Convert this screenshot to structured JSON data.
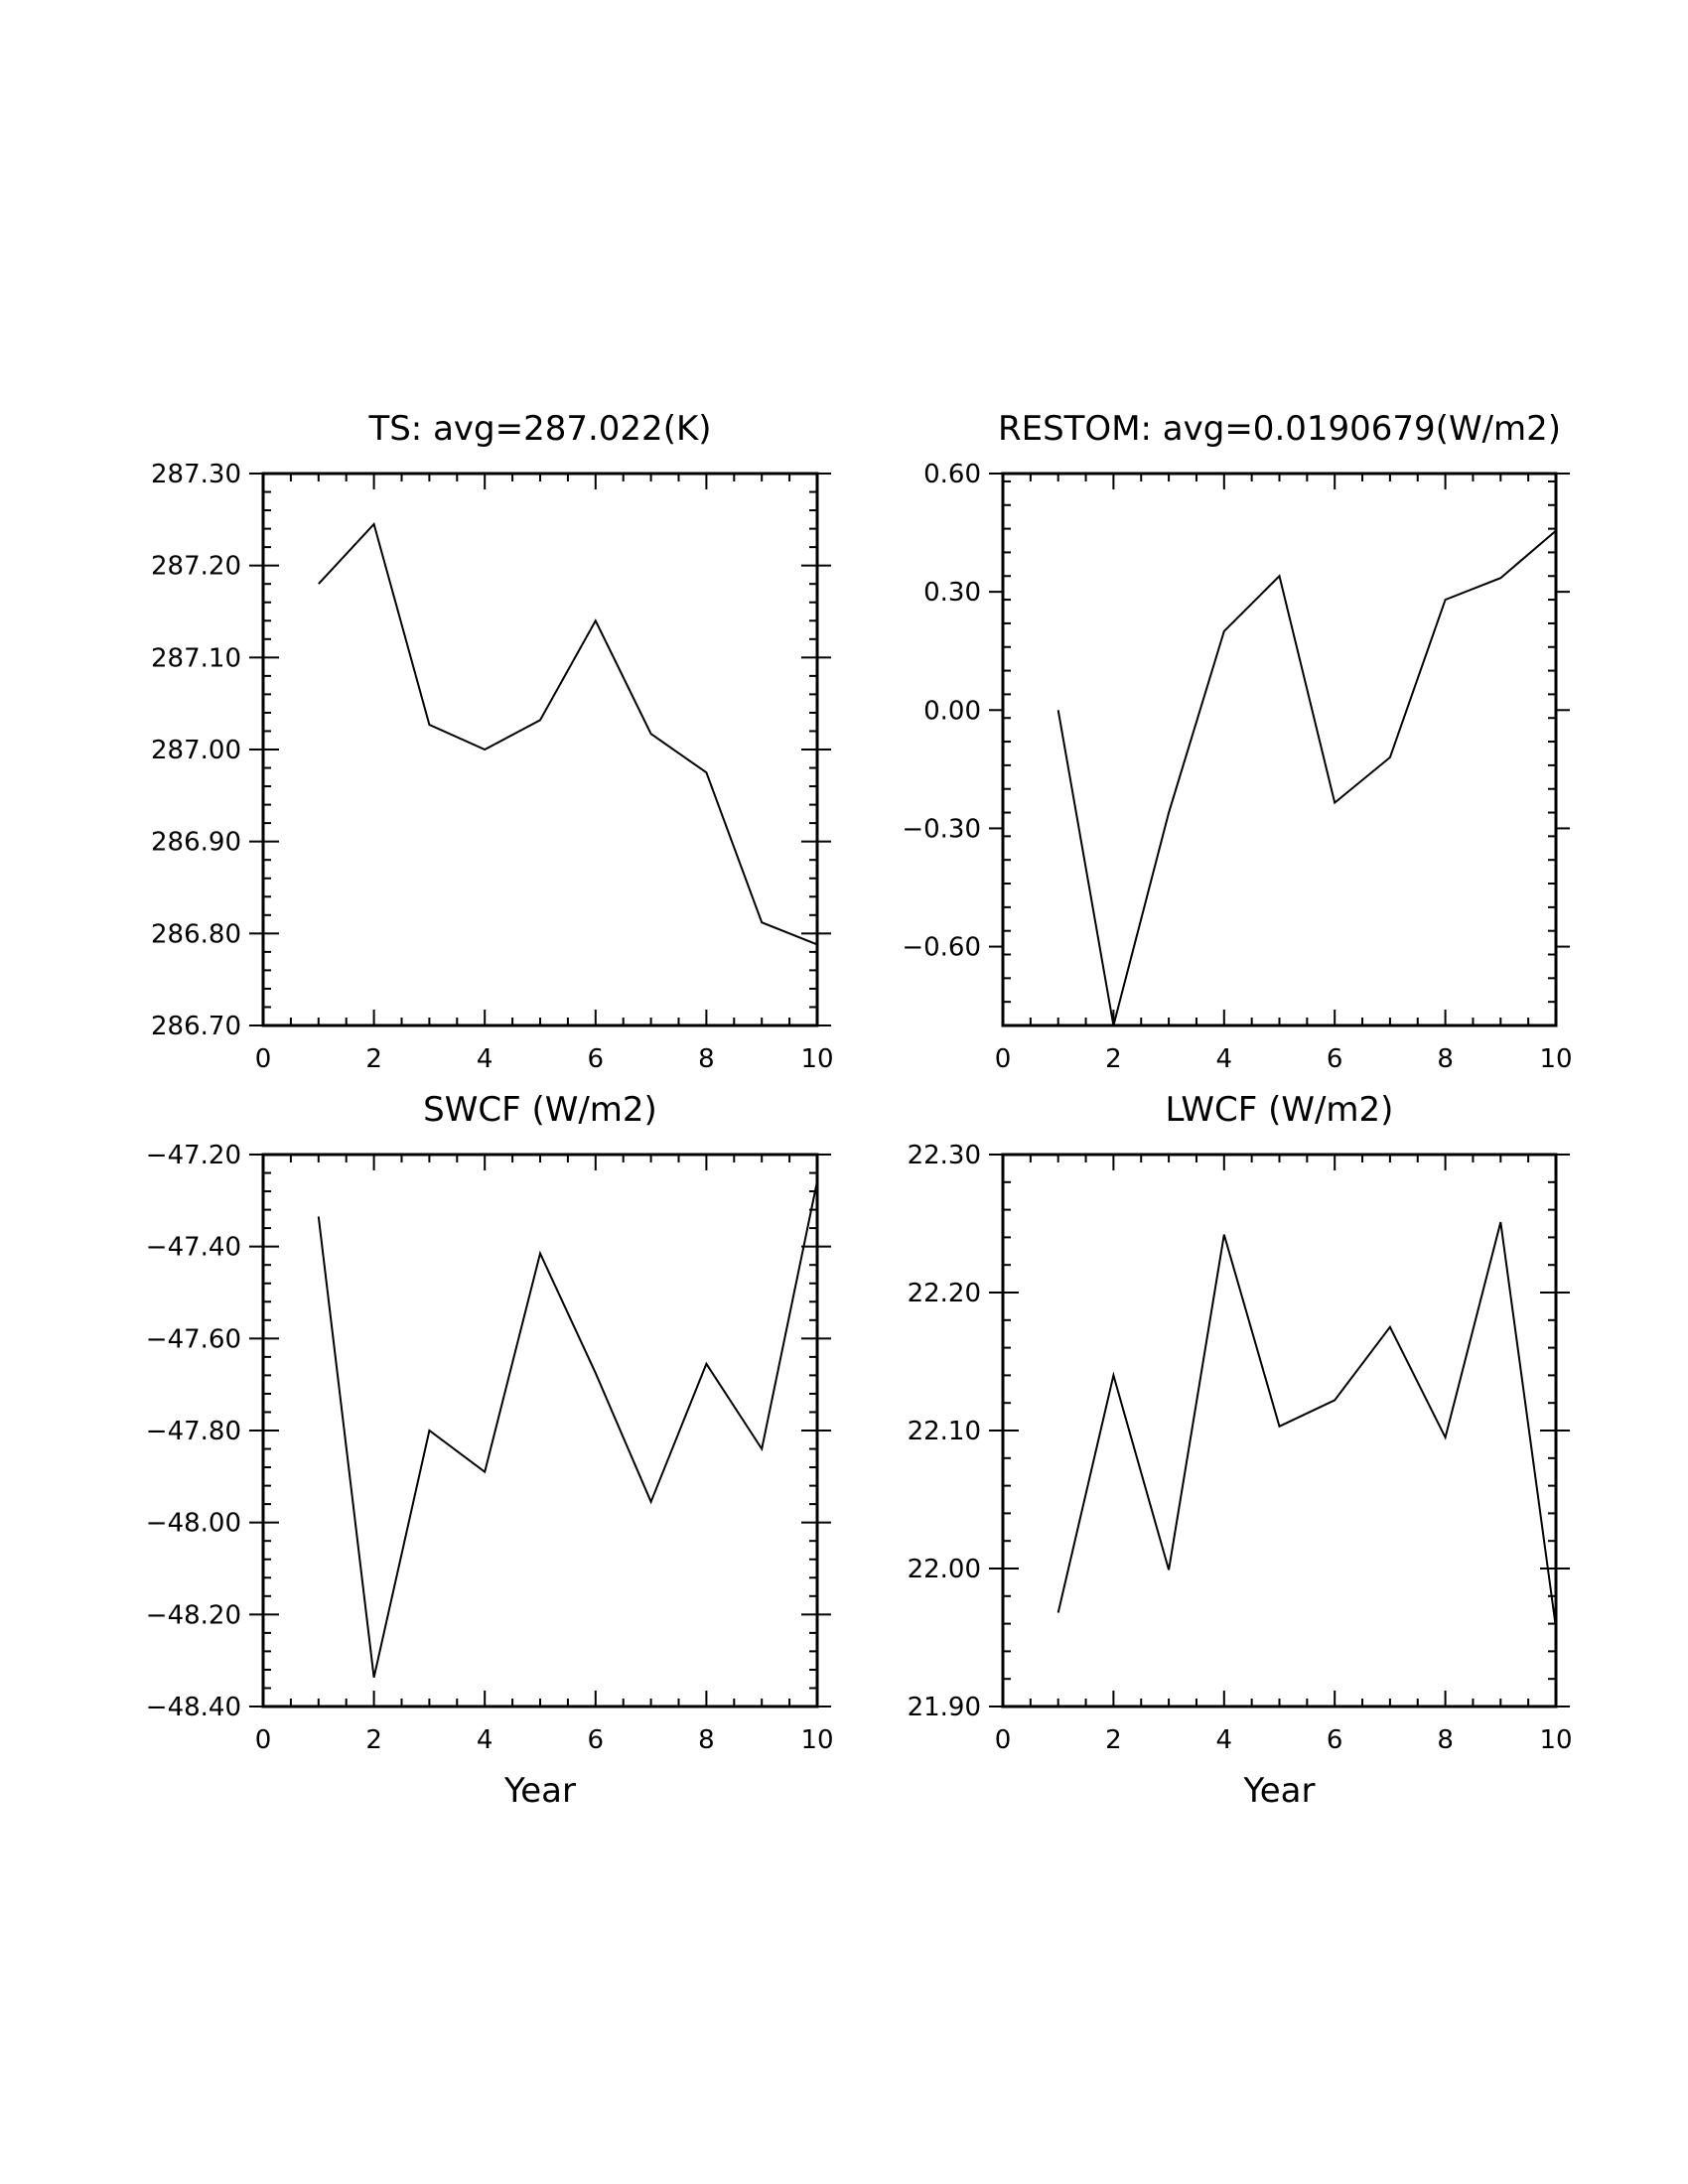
{
  "chart_data": [
    {
      "type": "line",
      "title": "TS: avg=287.022(K)",
      "xlabel": "",
      "ylabel": "",
      "xlim": [
        0,
        10
      ],
      "ylim": [
        286.7,
        287.3
      ],
      "xticks": [
        "0",
        "2",
        "4",
        "6",
        "8",
        "10"
      ],
      "yticks": [
        "286.70",
        "286.80",
        "286.90",
        "287.00",
        "287.10",
        "287.20",
        "287.30"
      ],
      "x": [
        1,
        2,
        3,
        4,
        5,
        6,
        7,
        8,
        9,
        10
      ],
      "series": [
        {
          "values": [
            287.18,
            287.245,
            287.027,
            287.0,
            287.032,
            287.14,
            287.017,
            286.975,
            286.812,
            286.788
          ]
        }
      ],
      "grid": false,
      "line_color": "#000000"
    },
    {
      "type": "line",
      "title": "RESTOM: avg=0.0190679(W/m2)",
      "xlabel": "",
      "ylabel": "",
      "xlim": [
        0,
        10
      ],
      "ylim": [
        -0.8,
        0.6
      ],
      "xticks": [
        "0",
        "2",
        "4",
        "6",
        "8",
        "10"
      ],
      "yticks": [
        "−0.60",
        "−0.30",
        "0.00",
        "0.30",
        "0.60"
      ],
      "ytick_values": [
        -0.6,
        -0.3,
        0.0,
        0.3,
        0.6
      ],
      "x": [
        1,
        2,
        3,
        4,
        5,
        6,
        7,
        8,
        9,
        10
      ],
      "series": [
        {
          "values": [
            0.0,
            -0.8,
            -0.26,
            0.2,
            0.34,
            -0.235,
            -0.12,
            0.28,
            0.335,
            0.455
          ]
        }
      ],
      "grid": false,
      "line_color": "#000000"
    },
    {
      "type": "line",
      "title": "SWCF (W/m2)",
      "xlabel": "Year",
      "ylabel": "",
      "xlim": [
        0,
        10
      ],
      "ylim": [
        -48.4,
        -47.2
      ],
      "xticks": [
        "0",
        "2",
        "4",
        "6",
        "8",
        "10"
      ],
      "yticks": [
        "−48.40",
        "−48.20",
        "−48.00",
        "−47.80",
        "−47.60",
        "−47.40",
        "−47.20"
      ],
      "ytick_values": [
        -48.4,
        -48.2,
        -48.0,
        -47.8,
        -47.6,
        -47.4,
        -47.2
      ],
      "x": [
        1,
        2,
        3,
        4,
        5,
        6,
        7,
        8,
        9,
        10
      ],
      "series": [
        {
          "values": [
            -47.335,
            -48.337,
            -47.8,
            -47.89,
            -47.415,
            -47.675,
            -47.955,
            -47.655,
            -47.84,
            -47.258
          ]
        }
      ],
      "grid": false,
      "line_color": "#000000"
    },
    {
      "type": "line",
      "title": "LWCF (W/m2)",
      "xlabel": "Year",
      "ylabel": "",
      "xlim": [
        0,
        10
      ],
      "ylim": [
        21.9,
        22.3
      ],
      "xticks": [
        "0",
        "2",
        "4",
        "6",
        "8",
        "10"
      ],
      "yticks": [
        "21.90",
        "22.00",
        "22.10",
        "22.20",
        "22.30"
      ],
      "ytick_values": [
        21.9,
        22.0,
        22.1,
        22.2,
        22.3
      ],
      "x": [
        1,
        2,
        3,
        4,
        5,
        6,
        7,
        8,
        9,
        10
      ],
      "series": [
        {
          "values": [
            21.968,
            22.14,
            21.999,
            22.242,
            22.103,
            22.122,
            22.175,
            22.095,
            22.251,
            21.957
          ]
        }
      ],
      "grid": false,
      "line_color": "#000000"
    }
  ]
}
